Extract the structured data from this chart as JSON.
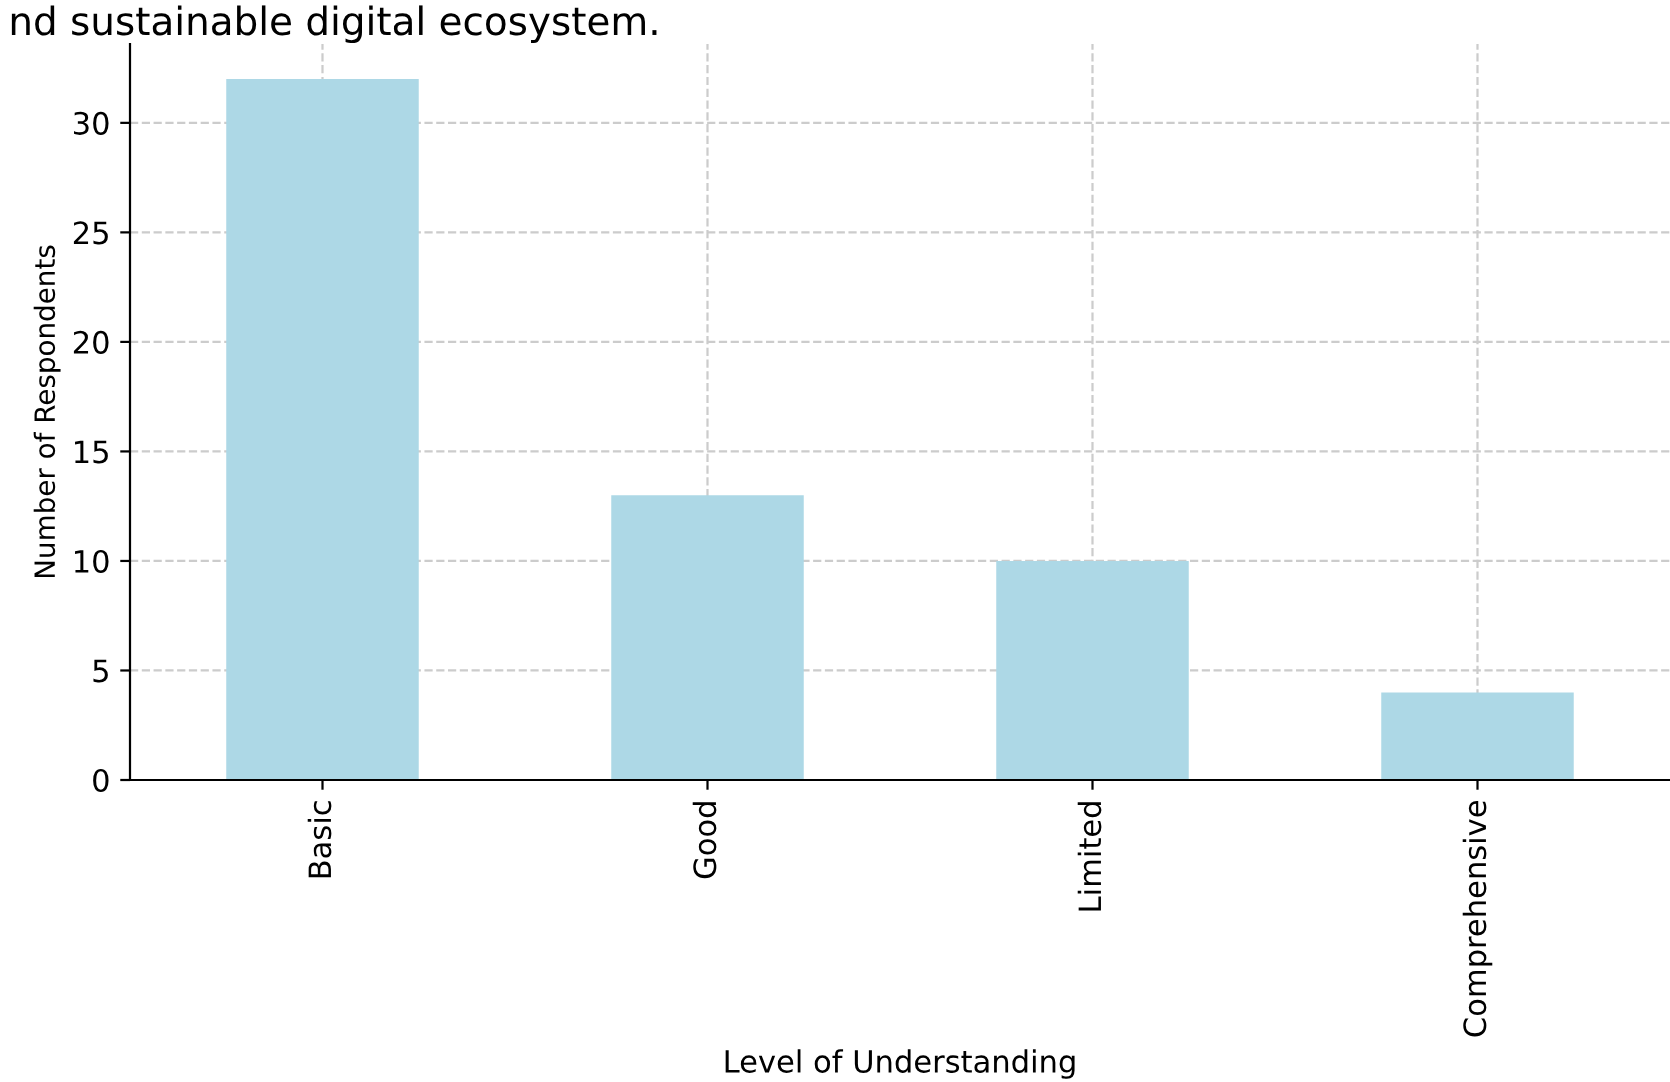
{
  "chart_data": {
    "type": "bar",
    "title": "nd sustainable digital ecosystem.",
    "xlabel": "Level of Understanding",
    "ylabel": "Number of Respondents",
    "categories": [
      "Basic",
      "Good",
      "Limited",
      "Comprehensive"
    ],
    "values": [
      32,
      13,
      10,
      4
    ],
    "color": "#add8e6",
    "ylim": [
      0,
      33.6
    ],
    "yticks": [
      0,
      5,
      10,
      15,
      20,
      25,
      30
    ],
    "grid": true
  }
}
